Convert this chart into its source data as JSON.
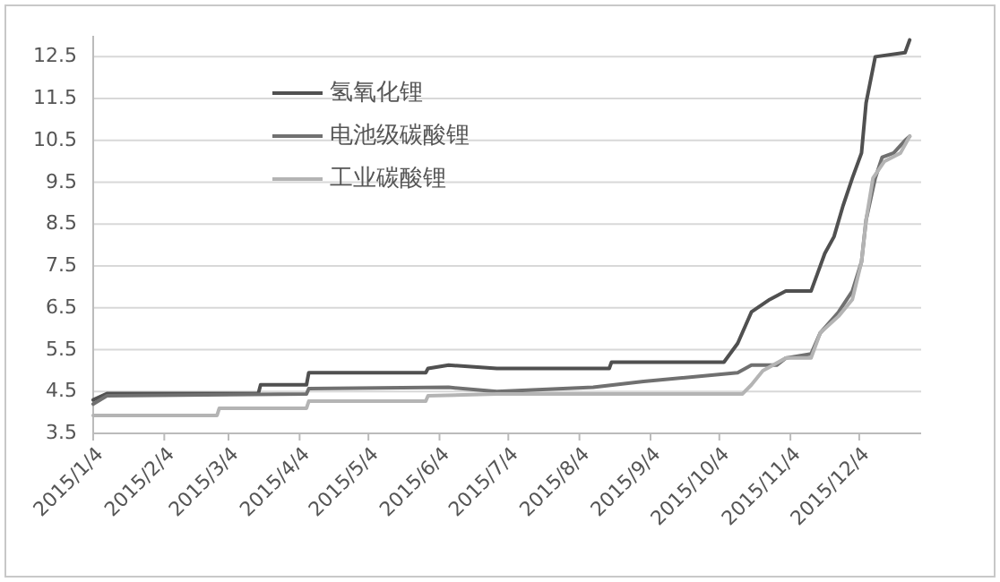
{
  "chart_data": {
    "type": "line",
    "xlim": [
      "2015-01-04",
      "2015-12-31"
    ],
    "ylim": [
      3.5,
      13
    ],
    "xticks": [
      {
        "value": "2015-01-04",
        "label": "2015/1/4"
      },
      {
        "value": "2015-02-04",
        "label": "2015/2/4"
      },
      {
        "value": "2015-03-04",
        "label": "2015/3/4"
      },
      {
        "value": "2015-04-04",
        "label": "2015/4/4"
      },
      {
        "value": "2015-05-04",
        "label": "2015/5/4"
      },
      {
        "value": "2015-06-04",
        "label": "2015/6/4"
      },
      {
        "value": "2015-07-04",
        "label": "2015/7/4"
      },
      {
        "value": "2015-08-04",
        "label": "2015/8/4"
      },
      {
        "value": "2015-09-04",
        "label": "2015/9/4"
      },
      {
        "value": "2015-10-04",
        "label": "2015/10/4"
      },
      {
        "value": "2015-11-04",
        "label": "2015/11/4"
      },
      {
        "value": "2015-12-04",
        "label": "2015/12/4"
      }
    ],
    "yticks": [
      3.5,
      4.5,
      5.5,
      6.5,
      7.5,
      8.5,
      9.5,
      10.5,
      11.5,
      12.5
    ],
    "grid": "y",
    "legend": "top left",
    "marker": "none",
    "line_style": "solid",
    "series": [
      {
        "name": "氢氧化锂",
        "color": "#505050",
        "x": [
          "2015-01-04",
          "2015-01-10",
          "2015-03-17",
          "2015-03-18",
          "2015-04-07",
          "2015-04-08",
          "2015-05-29",
          "2015-05-30",
          "2015-06-08",
          "2015-06-29",
          "2015-08-17",
          "2015-08-18",
          "2015-10-06",
          "2015-10-12",
          "2015-10-18",
          "2015-10-26",
          "2015-11-02",
          "2015-11-13",
          "2015-11-16",
          "2015-11-19",
          "2015-11-23",
          "2015-11-27",
          "2015-12-01",
          "2015-12-05",
          "2015-12-07",
          "2015-12-11",
          "2015-12-24",
          "2015-12-26"
        ],
        "values": [
          4.3,
          4.45,
          4.45,
          4.66,
          4.66,
          4.95,
          4.95,
          5.05,
          5.13,
          5.05,
          5.05,
          5.2,
          5.2,
          5.65,
          6.4,
          6.7,
          6.9,
          6.9,
          7.35,
          7.8,
          8.2,
          8.95,
          9.6,
          10.2,
          11.4,
          12.5,
          12.6,
          12.9
        ]
      },
      {
        "name": "电池级碳酸锂",
        "color": "#707070",
        "x": [
          "2015-01-04",
          "2015-01-10",
          "2015-04-07",
          "2015-04-08",
          "2015-06-08",
          "2015-06-29",
          "2015-08-10",
          "2015-09-01",
          "2015-10-12",
          "2015-10-18",
          "2015-10-29",
          "2015-11-02",
          "2015-11-13",
          "2015-11-17",
          "2015-11-25",
          "2015-12-01",
          "2015-12-05",
          "2015-12-07",
          "2015-12-11",
          "2015-12-14",
          "2015-12-19",
          "2015-12-24",
          "2015-12-26"
        ],
        "values": [
          4.2,
          4.4,
          4.44,
          4.57,
          4.6,
          4.5,
          4.6,
          4.74,
          4.95,
          5.13,
          5.13,
          5.3,
          5.4,
          5.9,
          6.4,
          6.9,
          7.6,
          8.6,
          9.6,
          10.1,
          10.2,
          10.5,
          10.6
        ]
      },
      {
        "name": "工业碳酸锂",
        "color": "#b4b4b4",
        "x": [
          "2015-01-04",
          "2015-02-27",
          "2015-02-28",
          "2015-04-07",
          "2015-04-08",
          "2015-05-29",
          "2015-05-30",
          "2015-06-29",
          "2015-10-14",
          "2015-10-18",
          "2015-10-23",
          "2015-11-02",
          "2015-11-13",
          "2015-11-17",
          "2015-11-25",
          "2015-12-01",
          "2015-12-05",
          "2015-12-07",
          "2015-12-10",
          "2015-12-15",
          "2015-12-22",
          "2015-12-26"
        ],
        "values": [
          3.93,
          3.93,
          4.1,
          4.1,
          4.27,
          4.27,
          4.4,
          4.44,
          4.44,
          4.66,
          5.0,
          5.3,
          5.3,
          5.9,
          6.3,
          6.7,
          7.6,
          8.6,
          9.6,
          10.0,
          10.2,
          10.6
        ]
      }
    ]
  }
}
